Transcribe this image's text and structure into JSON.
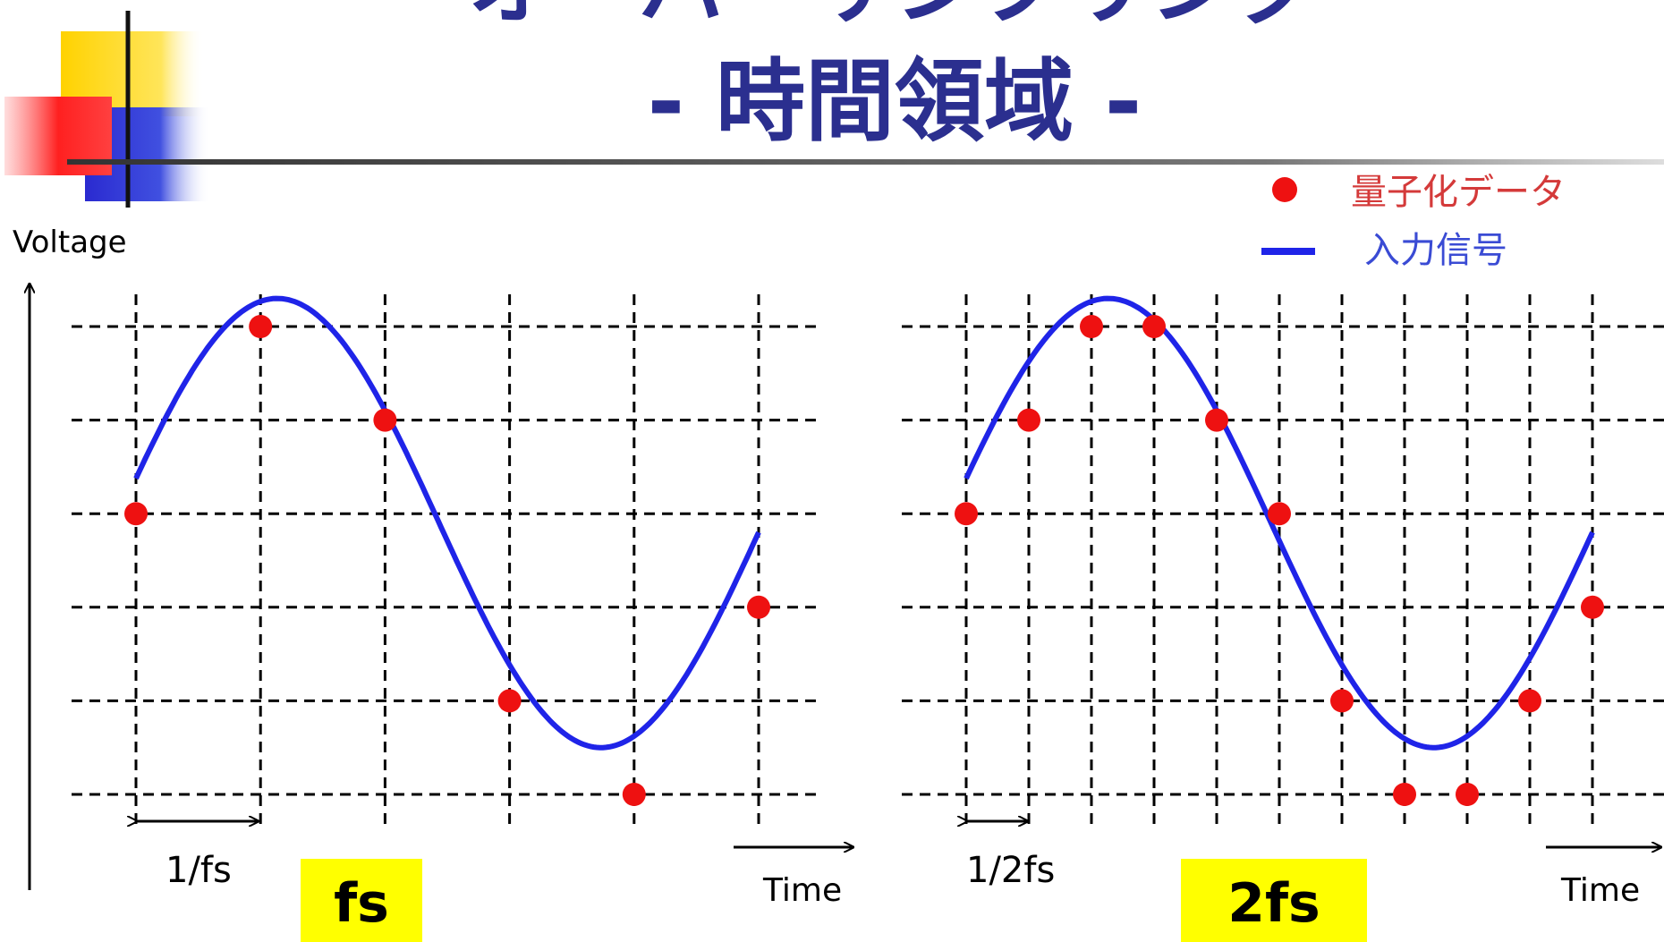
{
  "slide": {
    "title_line1": "オーバーサンプリング",
    "title_line2": "- 時間領域 -"
  },
  "colors": {
    "title": "#2b2f8f",
    "signal": "#1f24e8",
    "sample": "#ee1111",
    "highlight": "#ffff00",
    "legend_sample_text": "#d43a3a",
    "legend_signal_text": "#3a4bd4"
  },
  "legend": {
    "sample_label": "量子化データ",
    "signal_label": "入力信号"
  },
  "axis": {
    "y_label": "Voltage"
  },
  "chart_data": [
    {
      "type": "line",
      "name": "fs",
      "xlabel": "Time",
      "ylabel": "Voltage",
      "period_label": "1/fs",
      "rate_label": "fs",
      "grid": true,
      "grid_columns": [
        0,
        1,
        2,
        3,
        4,
        5
      ],
      "grid_rows": [
        2.5,
        1.5,
        0.5,
        -0.5,
        -1.5,
        -2.5
      ],
      "xlim": [
        -0.5,
        5.5
      ],
      "ylim": [
        -2.7,
        2.7
      ],
      "signal": {
        "amplitude": 2.4,
        "offset": 0.4,
        "phase": 0.2,
        "period": 5.2,
        "x_range": [
          0,
          5
        ]
      },
      "samples": {
        "x": [
          0,
          1,
          2,
          3,
          4,
          5
        ],
        "y": [
          0.5,
          2.5,
          1.5,
          -1.5,
          -2.5,
          -0.5
        ]
      }
    },
    {
      "type": "line",
      "name": "2fs",
      "xlabel": "Time",
      "ylabel": "Voltage",
      "period_label": "1/2fs",
      "rate_label": "2fs",
      "grid": true,
      "grid_columns": [
        0,
        0.5,
        1,
        1.5,
        2,
        2.5,
        3,
        3.5,
        4,
        4.5,
        5
      ],
      "grid_rows": [
        2.5,
        1.5,
        0.5,
        -0.5,
        -1.5,
        -2.5
      ],
      "xlim": [
        -0.5,
        5.5
      ],
      "ylim": [
        -2.7,
        2.7
      ],
      "signal": {
        "amplitude": 2.4,
        "offset": 0.4,
        "phase": 0.2,
        "period": 5.2,
        "x_range": [
          0,
          5
        ]
      },
      "samples": {
        "x": [
          0,
          0.5,
          1,
          1.5,
          2,
          2.5,
          3,
          3.5,
          4,
          4.5,
          5
        ],
        "y": [
          0.5,
          1.5,
          2.5,
          2.5,
          1.5,
          0.5,
          -1.5,
          -2.5,
          -2.5,
          -1.5,
          -0.5
        ]
      }
    }
  ]
}
